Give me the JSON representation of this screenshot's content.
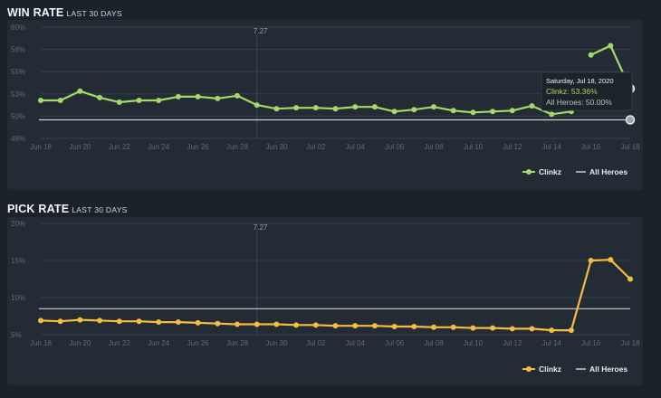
{
  "win": {
    "title": "WIN RATE",
    "subtitle": "LAST 30 DAYS",
    "patch_label": "7.27",
    "tooltip": {
      "date": "Saturday, Jul 18, 2020",
      "hero_line": "Clinkz: 53.36%",
      "all_line": "All Heroes: 50.00%"
    },
    "legend": {
      "hero": "Clinkz",
      "all": "All Heroes"
    }
  },
  "pick": {
    "title": "PICK RATE",
    "subtitle": "LAST 30 DAYS",
    "patch_label": "7.27",
    "legend": {
      "hero": "Clinkz",
      "all": "All Heroes"
    }
  },
  "colors": {
    "background": "#1b2229",
    "panel": "#232c35",
    "win_series": "#a3d96b",
    "pick_series": "#f5bc3f",
    "all_heroes_line": "#c9ced3",
    "grid": "#34404b",
    "tick": "#5e6b76"
  },
  "chart_data": [
    {
      "type": "line",
      "title": "WIN RATE LAST 30 DAYS",
      "x_tick_labels": [
        "Jun 18",
        "Jun 20",
        "Jun 22",
        "Jun 24",
        "Jun 26",
        "Jun 28",
        "Jun 30",
        "Jul 02",
        "Jul 04",
        "Jul 06",
        "Jul 08",
        "Jul 10",
        "Jul 12",
        "Jul 14",
        "Jul 16",
        "Jul 18"
      ],
      "y_tick_labels": [
        "60%",
        "58%",
        "55%",
        "53%",
        "50%",
        "48%"
      ],
      "ylim": [
        48,
        60
      ],
      "x": [
        "Jun 18",
        "Jun 19",
        "Jun 20",
        "Jun 21",
        "Jun 22",
        "Jun 23",
        "Jun 24",
        "Jun 25",
        "Jun 26",
        "Jun 27",
        "Jun 28",
        "Jun 29",
        "Jun 30",
        "Jul 01",
        "Jul 02",
        "Jul 03",
        "Jul 04",
        "Jul 05",
        "Jul 06",
        "Jul 07",
        "Jul 08",
        "Jul 09",
        "Jul 10",
        "Jul 11",
        "Jul 12",
        "Jul 13",
        "Jul 14",
        "Jul 15",
        "Jul 16",
        "Jul 17",
        "Jul 18"
      ],
      "series": [
        {
          "name": "Clinkz",
          "color": "#a3d96b",
          "values": [
            52.1,
            52.1,
            53.1,
            52.4,
            51.9,
            52.1,
            52.1,
            52.5,
            52.5,
            52.3,
            52.6,
            51.6,
            51.2,
            51.3,
            51.3,
            51.2,
            51.4,
            51.4,
            50.9,
            51.1,
            51.4,
            51.0,
            50.8,
            50.9,
            51.0,
            51.5,
            50.6,
            50.9,
            57.0,
            58.0,
            53.36
          ],
          "gap_after_index": 27
        },
        {
          "name": "All Heroes",
          "color": "#c9ced3",
          "values": [
            50,
            50,
            50,
            50,
            50,
            50,
            50,
            50,
            50,
            50,
            50,
            50,
            50,
            50,
            50,
            50,
            50,
            50,
            50,
            50,
            50,
            50,
            50,
            50,
            50,
            50,
            50,
            50,
            50,
            50,
            50
          ]
        }
      ],
      "annotations": [
        {
          "x": "Jun 29",
          "label": "7.27"
        }
      ],
      "tooltip_point": {
        "x": "Jul 18",
        "Clinkz": 53.36,
        "All Heroes": 50.0
      },
      "legend_position": "bottom-right",
      "grid": true
    },
    {
      "type": "line",
      "title": "PICK RATE LAST 30 DAYS",
      "x_tick_labels": [
        "Jun 18",
        "Jun 20",
        "Jun 22",
        "Jun 24",
        "Jun 26",
        "Jun 28",
        "Jun 30",
        "Jul 02",
        "Jul 04",
        "Jul 06",
        "Jul 08",
        "Jul 10",
        "Jul 12",
        "Jul 14",
        "Jul 16",
        "Jul 18"
      ],
      "y_tick_labels": [
        "20%",
        "15%",
        "10%",
        "5%"
      ],
      "ylim": [
        5,
        20
      ],
      "x": [
        "Jun 18",
        "Jun 19",
        "Jun 20",
        "Jun 21",
        "Jun 22",
        "Jun 23",
        "Jun 24",
        "Jun 25",
        "Jun 26",
        "Jun 27",
        "Jun 28",
        "Jun 29",
        "Jun 30",
        "Jul 01",
        "Jul 02",
        "Jul 03",
        "Jul 04",
        "Jul 05",
        "Jul 06",
        "Jul 07",
        "Jul 08",
        "Jul 09",
        "Jul 10",
        "Jul 11",
        "Jul 12",
        "Jul 13",
        "Jul 14",
        "Jul 15",
        "Jul 16",
        "Jul 17",
        "Jul 18"
      ],
      "series": [
        {
          "name": "Clinkz",
          "color": "#f5bc3f",
          "values": [
            6.9,
            6.8,
            7.0,
            6.9,
            6.8,
            6.8,
            6.7,
            6.7,
            6.6,
            6.5,
            6.4,
            6.4,
            6.4,
            6.3,
            6.3,
            6.2,
            6.2,
            6.2,
            6.1,
            6.1,
            6.0,
            6.0,
            5.9,
            5.9,
            5.8,
            5.8,
            5.6,
            5.6,
            15.0,
            15.1,
            12.5
          ]
        },
        {
          "name": "All Heroes",
          "color": "#c9ced3",
          "values": [
            8.5,
            8.5,
            8.5,
            8.5,
            8.5,
            8.5,
            8.5,
            8.5,
            8.5,
            8.5,
            8.5,
            8.5,
            8.5,
            8.5,
            8.5,
            8.5,
            8.5,
            8.5,
            8.5,
            8.5,
            8.5,
            8.5,
            8.5,
            8.5,
            8.5,
            8.5,
            8.5,
            8.5,
            8.5,
            8.5,
            8.5
          ]
        }
      ],
      "annotations": [
        {
          "x": "Jun 29",
          "label": "7.27"
        }
      ],
      "legend_position": "bottom-right",
      "grid": true
    }
  ]
}
